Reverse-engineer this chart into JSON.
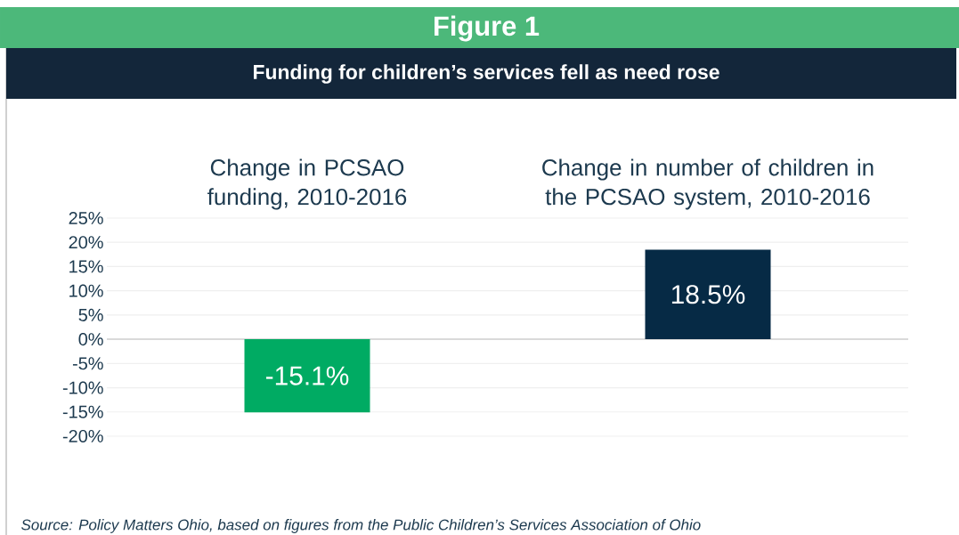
{
  "chart_data": {
    "type": "bar",
    "title": "Figure 1",
    "subtitle": "Funding for children’s services fell as need rose",
    "categories": [
      "Change in PCSAO funding, 2010-2016",
      "Change in number of children in the PCSAO system, 2010-2016"
    ],
    "values": [
      -15.1,
      18.5
    ],
    "colors": [
      "#00ab63",
      "#062a45"
    ],
    "value_labels": [
      "-15.1%",
      "18.5%"
    ],
    "ylim": [
      -20,
      25
    ],
    "yticks": [
      {
        "value": -20,
        "label": "-20%"
      },
      {
        "value": -15,
        "label": "-15%"
      },
      {
        "value": -10,
        "label": "-10%"
      },
      {
        "value": -5,
        "label": "-5%"
      },
      {
        "value": 0,
        "label": "0%"
      },
      {
        "value": 5,
        "label": "5%"
      },
      {
        "value": 10,
        "label": "10%"
      },
      {
        "value": 15,
        "label": "15%"
      },
      {
        "value": 20,
        "label": "20%"
      },
      {
        "value": 25,
        "label": "25%"
      }
    ],
    "grid": "y",
    "annotations": [
      "Source: Policy Matters Ohio, based on figures from the Public Children’s Services Association of Ohio"
    ]
  }
}
